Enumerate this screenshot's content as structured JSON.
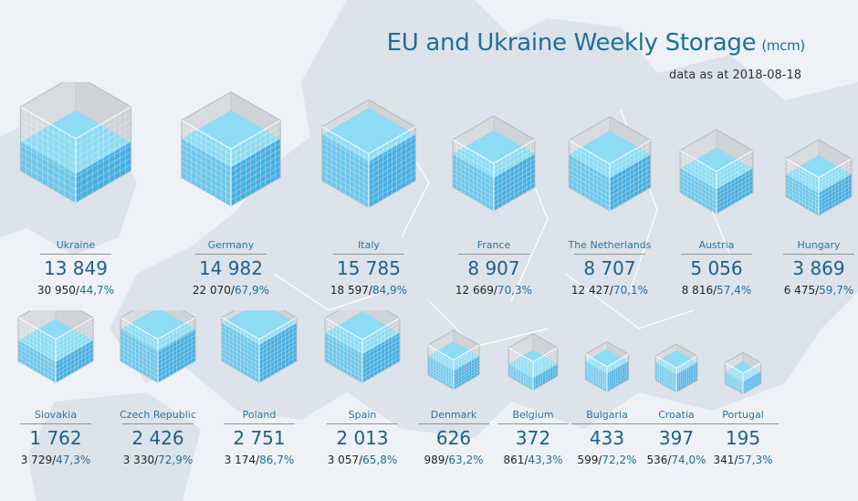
{
  "title": "EU and Ukraine Weekly Storage",
  "title_unit": "(mcm)",
  "subtitle_prefix": "data as at",
  "date": "2018-08-18",
  "colors": {
    "accent": "#1f6f98",
    "water": "#7fd1ef",
    "glass": "#d7dadd"
  },
  "chart_data": {
    "type": "isometric-cube",
    "items": [
      {
        "country": "Ukraine",
        "stock": "13 849",
        "capacity": "30 950",
        "full": "44,7%",
        "fill": 0.447,
        "capacity_mcm": 30950
      },
      {
        "country": "Germany",
        "stock": "14 982",
        "capacity": "22 070",
        "full": "67,9%",
        "fill": 0.679,
        "capacity_mcm": 22070
      },
      {
        "country": "Italy",
        "stock": "15 785",
        "capacity": "18 597",
        "full": "84,9%",
        "fill": 0.849,
        "capacity_mcm": 18597
      },
      {
        "country": "France",
        "stock": "8 907",
        "capacity": "12 669",
        "full": "70,3%",
        "fill": 0.703,
        "capacity_mcm": 12669
      },
      {
        "country": "The Netherlands",
        "stock": "8 707",
        "capacity": "12 427",
        "full": "70,1%",
        "fill": 0.701,
        "capacity_mcm": 12427
      },
      {
        "country": "Austria",
        "stock": "5 056",
        "capacity": "8 816",
        "full": "57,4%",
        "fill": 0.574,
        "capacity_mcm": 8816
      },
      {
        "country": "Hungary",
        "stock": "3 869",
        "capacity": "6 475",
        "full": "59,7%",
        "fill": 0.597,
        "capacity_mcm": 6475
      },
      {
        "country": "Slovakia",
        "stock": "1 762",
        "capacity": "3 729",
        "full": "47,3%",
        "fill": 0.473,
        "capacity_mcm": 3729
      },
      {
        "country": "Czech Republic",
        "stock": "2 426",
        "capacity": "3 330",
        "full": "72,9%",
        "fill": 0.729,
        "capacity_mcm": 3330
      },
      {
        "country": "Poland",
        "stock": "2 751",
        "capacity": "3 174",
        "full": "86,7%",
        "fill": 0.867,
        "capacity_mcm": 3174
      },
      {
        "country": "Spain",
        "stock": "2 013",
        "capacity": "3 057",
        "full": "65,8%",
        "fill": 0.658,
        "capacity_mcm": 3057
      },
      {
        "country": "Denmark",
        "stock": "626",
        "capacity": "989",
        "full": "63,2%",
        "fill": 0.632,
        "capacity_mcm": 989
      },
      {
        "country": "Belgium",
        "stock": "372",
        "capacity": "861",
        "full": "43,3%",
        "fill": 0.433,
        "capacity_mcm": 861
      },
      {
        "country": "Bulgaria",
        "stock": "433",
        "capacity": "599",
        "full": "72,2%",
        "fill": 0.722,
        "capacity_mcm": 599
      },
      {
        "country": "Croatia",
        "stock": "397",
        "capacity": "536",
        "full": "74,0%",
        "fill": 0.74,
        "capacity_mcm": 536
      },
      {
        "country": "Portugal",
        "stock": "195",
        "capacity": "341",
        "full": "57,3%",
        "fill": 0.573,
        "capacity_mcm": 341
      }
    ]
  }
}
